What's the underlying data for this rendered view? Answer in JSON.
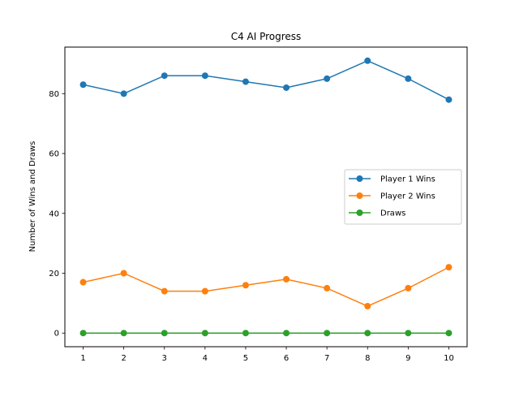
{
  "chart_data": {
    "type": "line",
    "title": "C4 AI Progress",
    "xlabel": "",
    "ylabel": "Number of Wins and Draws",
    "x": [
      1,
      2,
      3,
      4,
      5,
      6,
      7,
      8,
      9,
      10
    ],
    "x_ticks": [
      "1",
      "2",
      "3",
      "4",
      "5",
      "6",
      "7",
      "8",
      "9",
      "10"
    ],
    "y_ticks": [
      "0",
      "20",
      "40",
      "60",
      "80"
    ],
    "xlim": [
      0.55,
      10.45
    ],
    "ylim": [
      -4.55,
      95.55
    ],
    "grid": false,
    "legend_position": "center-right",
    "series": [
      {
        "name": "Player 1 Wins",
        "color": "#1f77b4",
        "values": [
          83,
          80,
          86,
          86,
          84,
          82,
          85,
          91,
          85,
          78
        ]
      },
      {
        "name": "Player 2 Wins",
        "color": "#ff7f0e",
        "values": [
          17,
          20,
          14,
          14,
          16,
          18,
          15,
          9,
          15,
          22
        ]
      },
      {
        "name": "Draws",
        "color": "#2ca02c",
        "values": [
          0,
          0,
          0,
          0,
          0,
          0,
          0,
          0,
          0,
          0
        ]
      }
    ]
  }
}
